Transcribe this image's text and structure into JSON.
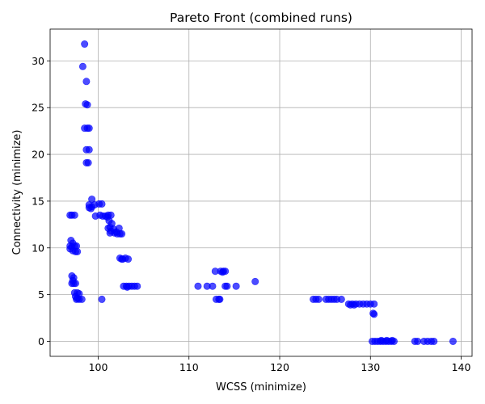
{
  "chart_data": {
    "type": "scatter",
    "title": "Pareto Front (combined runs)",
    "xlabel": "WCSS (minimize)",
    "ylabel": "Connectivity (minimize)",
    "xlim": [
      94.7,
      141.2
    ],
    "ylim": [
      -1.6,
      33.4
    ],
    "xticks": [
      100,
      110,
      120,
      130,
      140
    ],
    "yticks": [
      0,
      5,
      10,
      15,
      20,
      25,
      30
    ],
    "grid": true,
    "marker_color": "#0000ff",
    "marker_alpha": 0.7,
    "points": [
      [
        98.5,
        31.8
      ],
      [
        98.3,
        29.4
      ],
      [
        98.7,
        27.8
      ],
      [
        98.6,
        25.4
      ],
      [
        98.8,
        25.3
      ],
      [
        98.5,
        22.8
      ],
      [
        98.8,
        22.8
      ],
      [
        99.0,
        22.8
      ],
      [
        98.7,
        20.5
      ],
      [
        99.0,
        20.5
      ],
      [
        98.7,
        19.1
      ],
      [
        98.9,
        19.1
      ],
      [
        99.3,
        15.2
      ],
      [
        99.0,
        14.6
      ],
      [
        99.3,
        14.4
      ],
      [
        99.6,
        14.6
      ],
      [
        100.1,
        14.7
      ],
      [
        100.4,
        14.7
      ],
      [
        99.0,
        14.3
      ],
      [
        99.2,
        14.2
      ],
      [
        96.9,
        13.5
      ],
      [
        97.1,
        13.5
      ],
      [
        97.4,
        13.5
      ],
      [
        99.7,
        13.4
      ],
      [
        100.2,
        13.5
      ],
      [
        100.5,
        13.4
      ],
      [
        100.8,
        13.4
      ],
      [
        101.1,
        13.5
      ],
      [
        101.4,
        13.5
      ],
      [
        101.0,
        13.3
      ],
      [
        101.2,
        12.9
      ],
      [
        101.5,
        12.6
      ],
      [
        101.3,
        12.2
      ],
      [
        101.1,
        12.1
      ],
      [
        101.7,
        12.0
      ],
      [
        102.3,
        12.1
      ],
      [
        101.4,
        11.8
      ],
      [
        101.8,
        11.6
      ],
      [
        102.1,
        11.5
      ],
      [
        102.4,
        11.5
      ],
      [
        102.6,
        11.5
      ],
      [
        101.3,
        11.6
      ],
      [
        102.0,
        11.7
      ],
      [
        97.0,
        10.8
      ],
      [
        97.2,
        10.5
      ],
      [
        96.9,
        10.2
      ],
      [
        97.1,
        10.1
      ],
      [
        97.4,
        10.2
      ],
      [
        97.6,
        10.2
      ],
      [
        96.9,
        9.9
      ],
      [
        97.2,
        9.7
      ],
      [
        97.5,
        9.6
      ],
      [
        97.7,
        9.6
      ],
      [
        102.4,
        8.9
      ],
      [
        102.7,
        8.8
      ],
      [
        103.0,
        8.9
      ],
      [
        103.3,
        8.8
      ],
      [
        102.6,
        8.8
      ],
      [
        97.1,
        7.0
      ],
      [
        97.3,
        6.8
      ],
      [
        97.2,
        6.5
      ],
      [
        97.1,
        6.2
      ],
      [
        97.3,
        6.2
      ],
      [
        97.5,
        6.2
      ],
      [
        102.8,
        5.9
      ],
      [
        103.1,
        5.9
      ],
      [
        103.4,
        5.9
      ],
      [
        103.7,
        5.9
      ],
      [
        104.0,
        5.9
      ],
      [
        104.3,
        5.9
      ],
      [
        103.2,
        5.8
      ],
      [
        97.4,
        5.2
      ],
      [
        97.7,
        5.2
      ],
      [
        97.9,
        5.1
      ],
      [
        97.5,
        4.8
      ],
      [
        97.7,
        4.6
      ],
      [
        97.9,
        4.5
      ],
      [
        98.2,
        4.5
      ],
      [
        97.6,
        4.5
      ],
      [
        100.4,
        4.5
      ],
      [
        111.0,
        5.9
      ],
      [
        112.0,
        5.9
      ],
      [
        112.6,
        5.9
      ],
      [
        114.0,
        5.9
      ],
      [
        114.2,
        5.9
      ],
      [
        115.2,
        5.9
      ],
      [
        117.3,
        6.4
      ],
      [
        112.9,
        7.5
      ],
      [
        113.5,
        7.5
      ],
      [
        113.8,
        7.5
      ],
      [
        114.0,
        7.5
      ],
      [
        113.7,
        7.4
      ],
      [
        113.0,
        4.5
      ],
      [
        113.3,
        4.5
      ],
      [
        113.4,
        4.5
      ],
      [
        123.7,
        4.5
      ],
      [
        124.0,
        4.5
      ],
      [
        124.3,
        4.5
      ],
      [
        125.1,
        4.5
      ],
      [
        125.4,
        4.5
      ],
      [
        125.7,
        4.5
      ],
      [
        126.0,
        4.5
      ],
      [
        126.3,
        4.5
      ],
      [
        126.8,
        4.5
      ],
      [
        127.6,
        4.0
      ],
      [
        128.0,
        4.0
      ],
      [
        128.4,
        4.0
      ],
      [
        128.8,
        4.0
      ],
      [
        129.2,
        4.0
      ],
      [
        129.6,
        4.0
      ],
      [
        130.0,
        4.0
      ],
      [
        130.4,
        4.0
      ],
      [
        127.8,
        3.9
      ],
      [
        128.2,
        3.9
      ],
      [
        130.3,
        3.0
      ],
      [
        130.4,
        2.9
      ],
      [
        130.2,
        0.0
      ],
      [
        130.5,
        0.0
      ],
      [
        130.8,
        0.0
      ],
      [
        131.1,
        0.0
      ],
      [
        131.4,
        0.0
      ],
      [
        131.7,
        0.0
      ],
      [
        132.0,
        0.0
      ],
      [
        132.3,
        0.0
      ],
      [
        132.6,
        0.0
      ],
      [
        131.2,
        0.1
      ],
      [
        131.8,
        0.1
      ],
      [
        132.4,
        0.1
      ],
      [
        134.9,
        0.0
      ],
      [
        135.2,
        0.0
      ],
      [
        135.9,
        0.0
      ],
      [
        136.3,
        0.0
      ],
      [
        136.7,
        0.0
      ],
      [
        137.0,
        0.0
      ],
      [
        139.1,
        0.0
      ]
    ]
  }
}
